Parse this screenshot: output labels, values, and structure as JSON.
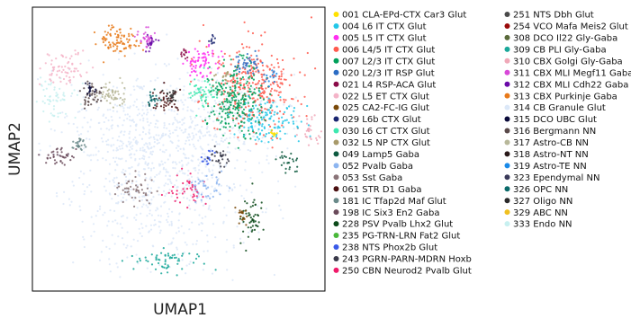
{
  "chart_data": {
    "type": "scatter",
    "xlabel": "UMAP1",
    "ylabel": "UMAP2",
    "legend_position": "right",
    "legend_columns": 2,
    "series": [
      {
        "name": "001 CLA-EPd-CTX Car3 Glut",
        "color": "#ffe100"
      },
      {
        "name": "004 L6 IT CTX Glut",
        "color": "#22c7e8"
      },
      {
        "name": "005 L5 IT CTX Glut",
        "color": "#ff2ff0"
      },
      {
        "name": "006 L4/5 IT CTX Glut",
        "color": "#ff5a4e"
      },
      {
        "name": "007 L2/3 IT CTX Glut",
        "color": "#00a05a"
      },
      {
        "name": "020 L2/3 IT RSP Glut",
        "color": "#2b6cc4"
      },
      {
        "name": "021 L4 RSP-ACA Glut",
        "color": "#8a0b48"
      },
      {
        "name": "022 L5 ET CTX Glut",
        "color": "#f4b4c8"
      },
      {
        "name": "025 CA2-FC-IG Glut",
        "color": "#7a4a0a"
      },
      {
        "name": "029 L6b CTX Glut",
        "color": "#1a2670"
      },
      {
        "name": "030 L6 CT CTX Glut",
        "color": "#3ee8b0"
      },
      {
        "name": "032 L5 NP CTX Glut",
        "color": "#a89a6a"
      },
      {
        "name": "049 Lamp5 Gaba",
        "color": "#0e5a40"
      },
      {
        "name": "052 Pvalb Gaba",
        "color": "#8db5f0"
      },
      {
        "name": "053 Sst Gaba",
        "color": "#8a7478"
      },
      {
        "name": "061 STR D1 Gaba",
        "color": "#4a0f10"
      },
      {
        "name": "181 IC Tfap2d Maf Glut",
        "color": "#6a8a8a"
      },
      {
        "name": "198 IC Six3 En2 Gaba",
        "color": "#6a4a5a"
      },
      {
        "name": "228 PSV Pvalb Lhx2 Glut",
        "color": "#0c4a1a"
      },
      {
        "name": "235 PG-TRN-LRN Fat2 Glut",
        "color": "#4ab83a"
      },
      {
        "name": "238 NTS Phox2b Glut",
        "color": "#3a5ae8"
      },
      {
        "name": "243 PGRN-PARN-MDRN Hoxb",
        "color": "#3a3a4a"
      },
      {
        "name": "250 CBN Neurod2 Pvalb Glut",
        "color": "#f01a6a"
      },
      {
        "name": "251 NTS Dbh Glut",
        "color": "#4a4a4a"
      },
      {
        "name": "254 VCO Mafa Meis2 Glut",
        "color": "#9a0a0a"
      },
      {
        "name": "308 DCO Il22 Gly-Gaba",
        "color": "#5a6a3a"
      },
      {
        "name": "309 CB PLI Gly-Gaba",
        "color": "#1aa89a"
      },
      {
        "name": "310 CBX Golgi Gly-Gaba",
        "color": "#f0a8b8"
      },
      {
        "name": "311 CBX MLI Megf11 Gaba",
        "color": "#d848d8"
      },
      {
        "name": "312 CBX MLI Cdh22 Gaba",
        "color": "#6a0aa8"
      },
      {
        "name": "313 CBX Purkinje Gaba",
        "color": "#e87a1a"
      },
      {
        "name": "314 CB Granule Glut",
        "color": "#dce8f8"
      },
      {
        "name": "315 DCO UBC Glut",
        "color": "#0a0a3a"
      },
      {
        "name": "316 Bergmann NN",
        "color": "#5a4a4a"
      },
      {
        "name": "317 Astro-CB NN",
        "color": "#b8b89a"
      },
      {
        "name": "318 Astro-NT NN",
        "color": "#2a1a1a"
      },
      {
        "name": "319 Astro-TE NN",
        "color": "#1a8ae8"
      },
      {
        "name": "323 Ependymal NN",
        "color": "#3a3a5a"
      },
      {
        "name": "326 OPC NN",
        "color": "#0a6a6a"
      },
      {
        "name": "327 Oligo NN",
        "color": "#2a2a2a"
      },
      {
        "name": "329 ABC NN",
        "color": "#f0c020"
      },
      {
        "name": "333 Endo NN",
        "color": "#c8f0f0"
      }
    ]
  }
}
